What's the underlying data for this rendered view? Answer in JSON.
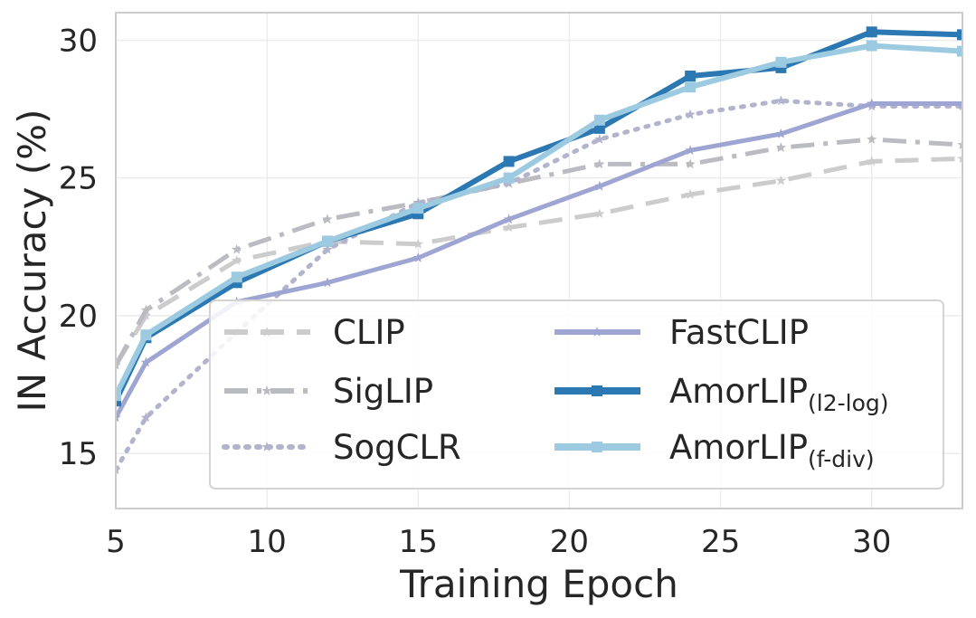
{
  "chart_data": {
    "type": "line",
    "xlabel": "Training Epoch",
    "ylabel": "IN Accuracy (%)",
    "xlim": [
      5,
      33
    ],
    "ylim": [
      13,
      31
    ],
    "xticks": [
      5,
      10,
      15,
      20,
      25,
      30
    ],
    "yticks": [
      15,
      20,
      25,
      30
    ],
    "grid": true,
    "legend_position": "lower-right",
    "legend_columns": 2,
    "series": [
      {
        "name": "CLIP",
        "sub": "",
        "color": "#cccccc",
        "style": "dashed",
        "marker": "star",
        "x": [
          5,
          6,
          9,
          12,
          15,
          18,
          21,
          24,
          27,
          30,
          33
        ],
        "y": [
          18.2,
          20.0,
          22.0,
          22.7,
          22.6,
          23.2,
          23.7,
          24.4,
          24.9,
          25.6,
          25.7
        ]
      },
      {
        "name": "SigLIP",
        "sub": "",
        "color": "#bbbcc2",
        "style": "dashdot",
        "marker": "star",
        "x": [
          5,
          6,
          9,
          12,
          15,
          18,
          21,
          24,
          27,
          30,
          33
        ],
        "y": [
          18.2,
          20.2,
          22.4,
          23.5,
          24.1,
          24.8,
          25.5,
          25.5,
          26.1,
          26.4,
          26.2
        ]
      },
      {
        "name": "SogCLR",
        "sub": "",
        "color": "#b2b3cc",
        "style": "dotted",
        "marker": "star",
        "x": [
          5,
          6,
          9,
          12,
          15,
          18,
          21,
          24,
          27,
          30,
          33
        ],
        "y": [
          14.4,
          16.3,
          19.4,
          22.4,
          24.1,
          24.8,
          26.4,
          27.3,
          27.8,
          27.6,
          27.6
        ]
      },
      {
        "name": "FastCLIP",
        "sub": "",
        "color": "#9ea5d2",
        "style": "solid",
        "marker": "star",
        "x": [
          5,
          6,
          9,
          12,
          15,
          18,
          21,
          24,
          27,
          30,
          33
        ],
        "y": [
          16.3,
          18.3,
          20.5,
          21.2,
          22.1,
          23.5,
          24.7,
          26.0,
          26.6,
          27.7,
          27.7
        ]
      },
      {
        "name": "AmorLIP",
        "sub": "(l2-log)",
        "color": "#2b78b3",
        "style": "solid",
        "marker": "square",
        "x": [
          5,
          6,
          9,
          12,
          15,
          18,
          21,
          24,
          27,
          30,
          33
        ],
        "y": [
          16.9,
          19.2,
          21.2,
          22.7,
          23.7,
          25.6,
          26.8,
          28.7,
          29.0,
          30.3,
          30.2
        ]
      },
      {
        "name": "AmorLIP",
        "sub": "(f-div)",
        "color": "#9ccae1",
        "style": "solid",
        "marker": "square",
        "x": [
          5,
          6,
          9,
          12,
          15,
          18,
          21,
          24,
          27,
          30,
          33
        ],
        "y": [
          17.1,
          19.3,
          21.4,
          22.7,
          23.9,
          25.0,
          27.1,
          28.3,
          29.2,
          29.8,
          29.6
        ]
      }
    ]
  }
}
